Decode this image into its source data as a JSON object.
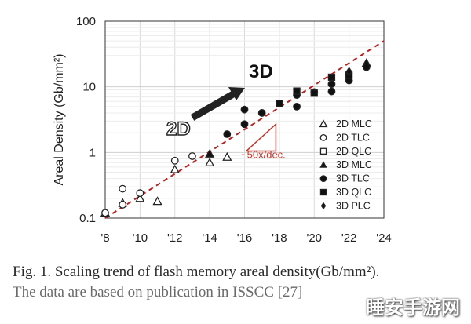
{
  "chart_data": {
    "type": "scatter",
    "ylabel": "Areal Density (Gb/mm²)",
    "yscale": "log",
    "xlim": [
      2008,
      2024
    ],
    "ylim": [
      0.1,
      100
    ],
    "x_ticks": [
      2008,
      2010,
      2012,
      2014,
      2016,
      2018,
      2020,
      2022,
      2024
    ],
    "x_tick_labels": [
      "'8",
      "'10",
      "'12",
      "'14",
      "'16",
      "'18",
      "'20",
      "'22",
      "'24"
    ],
    "y_ticks": [
      0.1,
      1,
      10,
      100
    ],
    "y_tick_labels": [
      "0.1",
      "1",
      "10",
      "100"
    ],
    "grid": true,
    "legend_position": "right",
    "series": [
      {
        "name": "2D MLC",
        "marker": "triangle-open",
        "points": [
          [
            2008,
            0.12
          ],
          [
            2009,
            0.17
          ],
          [
            2010,
            0.2
          ],
          [
            2011,
            0.18
          ],
          [
            2012,
            0.55
          ],
          [
            2014,
            0.7
          ],
          [
            2015,
            0.85
          ]
        ]
      },
      {
        "name": "2D TLC",
        "marker": "circle-open",
        "points": [
          [
            2008,
            0.12
          ],
          [
            2009,
            0.28
          ],
          [
            2009,
            0.16
          ],
          [
            2010,
            0.24
          ],
          [
            2012,
            0.75
          ],
          [
            2013,
            0.88
          ]
        ]
      },
      {
        "name": "2D QLC",
        "marker": "square-open",
        "points": []
      },
      {
        "name": "3D MLC",
        "marker": "triangle-filled",
        "points": [
          [
            2014,
            0.95
          ],
          [
            2023,
            23
          ]
        ]
      },
      {
        "name": "3D TLC",
        "marker": "circle-filled",
        "points": [
          [
            2015,
            1.9
          ],
          [
            2016,
            2.7
          ],
          [
            2016,
            4.5
          ],
          [
            2017,
            4.0
          ],
          [
            2019,
            5.0
          ],
          [
            2019,
            7.5
          ],
          [
            2020,
            8.3
          ],
          [
            2021,
            8.5
          ],
          [
            2021,
            11
          ],
          [
            2022,
            12.5
          ],
          [
            2023,
            20
          ]
        ]
      },
      {
        "name": "3D QLC",
        "marker": "square-filled",
        "points": [
          [
            2018,
            5.6
          ],
          [
            2019,
            8.6
          ],
          [
            2020,
            8.0
          ],
          [
            2021,
            14
          ],
          [
            2022,
            15
          ]
        ]
      },
      {
        "name": "3D PLC",
        "marker": "diamond-filled",
        "points": [
          [
            2022,
            17
          ]
        ]
      }
    ],
    "trend_line": {
      "from": [
        2008,
        0.1
      ],
      "to": [
        2024,
        50
      ],
      "color": "#b22222"
    },
    "slope_label": "~50x/dec.",
    "label_2d": "2D",
    "label_3d": "3D",
    "accent_color": "#c0392b"
  },
  "caption": {
    "line1": "Fig. 1.  Scaling trend of flash memory areal density(Gb/mm²).",
    "line2": "The data are based on publication in ISSCC [27]"
  },
  "watermark": "睡安手游网"
}
